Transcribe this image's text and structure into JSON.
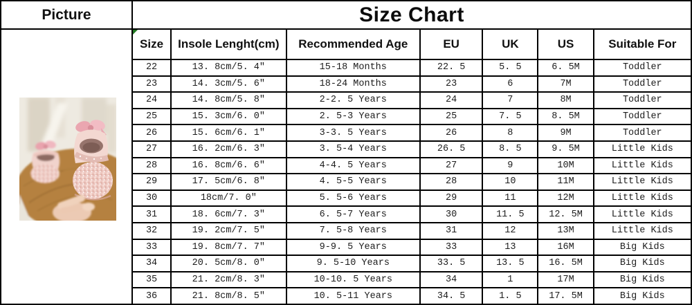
{
  "picture_panel": {
    "header": "Picture"
  },
  "chart": {
    "title": "Size Chart"
  },
  "table": {
    "columns": [
      "Size",
      "Insole Lenght(cm)",
      "Recommended Age",
      "EU",
      "UK",
      "US",
      "Suitable For"
    ],
    "rows": [
      [
        "22",
        "13. 8cm/5. 4″",
        "15-18 Months",
        "22. 5",
        "5. 5",
        "6. 5M",
        "Toddler"
      ],
      [
        "23",
        "14. 3cm/5. 6″",
        "18-24 Months",
        "23",
        "6",
        "7M",
        "Toddler"
      ],
      [
        "24",
        "14. 8cm/5. 8″",
        "2-2. 5 Years",
        "24",
        "7",
        "8M",
        "Toddler"
      ],
      [
        "25",
        "15. 3cm/6. 0″",
        "2. 5-3 Years",
        "25",
        "7. 5",
        "8. 5M",
        "Toddler"
      ],
      [
        "26",
        "15. 6cm/6. 1″",
        "3-3. 5 Years",
        "26",
        "8",
        "9M",
        "Toddler"
      ],
      [
        "27",
        "16. 2cm/6. 3″",
        "3. 5-4 Years",
        "26. 5",
        "8. 5",
        "9. 5M",
        "Little Kids"
      ],
      [
        "28",
        "16. 8cm/6. 6″",
        "4-4. 5 Years",
        "27",
        "9",
        "10M",
        "Little Kids"
      ],
      [
        "29",
        "17. 5cm/6. 8″",
        "4. 5-5 Years",
        "28",
        "10",
        "11M",
        "Little Kids"
      ],
      [
        "30",
        "18cm/7. 0″",
        "5. 5-6 Years",
        "29",
        "11",
        "12M",
        "Little Kids"
      ],
      [
        "31",
        "18. 6cm/7. 3″",
        "6. 5-7 Years",
        "30",
        "11. 5",
        "12. 5M",
        "Little Kids"
      ],
      [
        "32",
        "19. 2cm/7. 5″",
        "7. 5-8 Years",
        "31",
        "12",
        "13M",
        "Little Kids"
      ],
      [
        "33",
        "19. 8cm/7. 7″",
        "9-9. 5 Years",
        "33",
        "13",
        "16M",
        "Big Kids"
      ],
      [
        "34",
        "20. 5cm/8. 0″",
        "9. 5-10 Years",
        "33. 5",
        "13. 5",
        "16. 5M",
        "Big Kids"
      ],
      [
        "35",
        "21. 2cm/8. 3″",
        "10-10. 5 Years",
        "34",
        "1",
        "17M",
        "Big Kids"
      ],
      [
        "36",
        "21. 8cm/8. 5″",
        "10. 5-11 Years",
        "34. 5",
        "1. 5",
        "17. 5M",
        "Big Kids"
      ]
    ]
  },
  "colors": {
    "border": "#000000",
    "background": "#ffffff",
    "text": "#1c1c1c",
    "corner_marker_green": "#217821",
    "shoe_pink": "#f2d6cf",
    "bow_pink": "#eaa6b0",
    "wood_brown": "#b5813f",
    "photo_background": "#eeeae1"
  }
}
